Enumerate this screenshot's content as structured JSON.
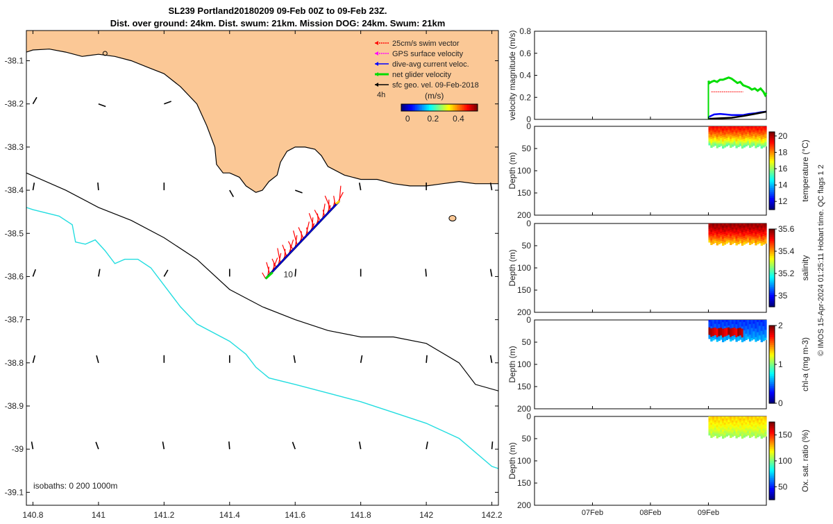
{
  "figure": {
    "title_line1": "SL239 Portland20180209 09-Feb 00Z to 09-Feb 23Z.",
    "title_line2": "Dist. over ground: 24km. Dist. swum: 21km. Mission DOG: 24km. Swum: 21km",
    "copyright": "© IMOS 15-Apr-2024 01:25:11 Hobart time. QC flags 1  2"
  },
  "chart_data": [
    {
      "type": "map",
      "name": "glider-track-map",
      "xlim": [
        140.78,
        142.22
      ],
      "ylim": [
        -39.13,
        -38.03
      ],
      "xticks": [
        140.8,
        141,
        141.2,
        141.4,
        141.6,
        141.8,
        142,
        142.2
      ],
      "yticks": [
        -38.1,
        -38.2,
        -38.3,
        -38.4,
        -38.5,
        -38.6,
        -38.7,
        -38.8,
        -38.9,
        -39,
        -39.1
      ],
      "xtick_labels": [
        "140.8",
        "141",
        "141.2",
        "141.4",
        "141.6",
        "141.8",
        "142",
        "142.2"
      ],
      "ytick_labels": [
        "-38.1",
        "-38.2",
        "-38.3",
        "-38.4",
        "-38.5",
        "-38.6",
        "-38.7",
        "-38.8",
        "-38.9",
        "-39",
        "-39.1"
      ],
      "land_color": "#fbc896",
      "coast": [
        [
          140.78,
          -38.08
        ],
        [
          140.8,
          -38.075
        ],
        [
          140.85,
          -38.073
        ],
        [
          140.9,
          -38.08
        ],
        [
          140.95,
          -38.09
        ],
        [
          141.0,
          -38.085
        ],
        [
          141.05,
          -38.09
        ],
        [
          141.1,
          -38.1
        ],
        [
          141.15,
          -38.115
        ],
        [
          141.2,
          -38.13
        ],
        [
          141.25,
          -38.16
        ],
        [
          141.3,
          -38.2
        ],
        [
          141.33,
          -38.25
        ],
        [
          141.355,
          -38.3
        ],
        [
          141.36,
          -38.34
        ],
        [
          141.38,
          -38.36
        ],
        [
          141.4,
          -38.36
        ],
        [
          141.43,
          -38.37
        ],
        [
          141.45,
          -38.39
        ],
        [
          141.48,
          -38.405
        ],
        [
          141.5,
          -38.4
        ],
        [
          141.52,
          -38.38
        ],
        [
          141.545,
          -38.365
        ],
        [
          141.555,
          -38.335
        ],
        [
          141.575,
          -38.31
        ],
        [
          141.6,
          -38.3
        ],
        [
          141.63,
          -38.3
        ],
        [
          141.66,
          -38.305
        ],
        [
          141.68,
          -38.32
        ],
        [
          141.7,
          -38.345
        ],
        [
          141.75,
          -38.365
        ],
        [
          141.8,
          -38.375
        ],
        [
          141.85,
          -38.375
        ],
        [
          141.9,
          -38.385
        ],
        [
          141.95,
          -38.39
        ],
        [
          142.0,
          -38.39
        ],
        [
          142.05,
          -38.385
        ],
        [
          142.1,
          -38.38
        ],
        [
          142.15,
          -38.385
        ],
        [
          142.22,
          -38.385
        ]
      ],
      "isobath_200": [
        [
          140.78,
          -38.36
        ],
        [
          140.9,
          -38.4
        ],
        [
          141.0,
          -38.44
        ],
        [
          141.1,
          -38.47
        ],
        [
          141.2,
          -38.51
        ],
        [
          141.3,
          -38.56
        ],
        [
          141.4,
          -38.63
        ],
        [
          141.5,
          -38.67
        ],
        [
          141.6,
          -38.7
        ],
        [
          141.7,
          -38.725
        ],
        [
          141.8,
          -38.74
        ],
        [
          141.9,
          -38.74
        ],
        [
          142.0,
          -38.755
        ],
        [
          142.1,
          -38.8
        ],
        [
          142.15,
          -38.85
        ],
        [
          142.22,
          -38.865
        ]
      ],
      "isobath_1000": [
        [
          140.78,
          -38.44
        ],
        [
          140.8,
          -38.445
        ],
        [
          140.88,
          -38.46
        ],
        [
          140.92,
          -38.48
        ],
        [
          140.93,
          -38.52
        ],
        [
          140.96,
          -38.525
        ],
        [
          140.99,
          -38.515
        ],
        [
          141.02,
          -38.54
        ],
        [
          141.05,
          -38.57
        ],
        [
          141.08,
          -38.56
        ],
        [
          141.12,
          -38.56
        ],
        [
          141.16,
          -38.58
        ],
        [
          141.2,
          -38.62
        ],
        [
          141.25,
          -38.67
        ],
        [
          141.3,
          -38.71
        ],
        [
          141.4,
          -38.75
        ],
        [
          141.45,
          -38.78
        ],
        [
          141.48,
          -38.81
        ],
        [
          141.52,
          -38.835
        ],
        [
          141.6,
          -38.85
        ],
        [
          141.7,
          -38.87
        ],
        [
          141.8,
          -38.89
        ],
        [
          141.9,
          -38.915
        ],
        [
          142.0,
          -38.94
        ],
        [
          142.1,
          -38.975
        ],
        [
          142.2,
          -39.04
        ],
        [
          142.22,
          -39.045
        ]
      ],
      "glider_track": {
        "start": [
          141.51,
          -38.605
        ],
        "end": [
          141.735,
          -38.425
        ],
        "label": "10",
        "label_at": [
          141.535,
          -38.595
        ]
      },
      "geo_vector_grid": {
        "lons": [
          140.8,
          141.0,
          141.2,
          141.4,
          141.6,
          141.8,
          142.0,
          142.2
        ],
        "lats": [
          -38.2,
          -38.4,
          -38.6,
          -38.8,
          -39.0
        ]
      },
      "isobaths_label": "isobaths: 0   200  1000m",
      "legend": {
        "entries": [
          {
            "label": "25cm/s swim vector",
            "color": "#ff0000"
          },
          {
            "label": "GPS surface velocity",
            "color": "#ff00ff"
          },
          {
            "label": "dive-avg current veloc.",
            "color": "#0000ff"
          },
          {
            "label": "net glider velocity",
            "color": "#00dd00"
          },
          {
            "label": "sfc geo. vel. 09-Feb-2018",
            "color": "#000000"
          }
        ],
        "window_label": "4h",
        "colorbar_units": "(m/s)",
        "colorbar_ticks": [
          "0",
          "0.2",
          "0.4"
        ],
        "colorbar_range": [
          -0.05,
          0.55
        ]
      }
    },
    {
      "type": "line",
      "name": "velocity-magnitude",
      "ylabel": "velocity magnitude (m/s)",
      "ylim": [
        0,
        0.8
      ],
      "yticks": [
        0,
        0.2,
        0.4,
        0.6,
        0.8
      ],
      "ytick_labels": [
        "0",
        "0.2",
        "0.4",
        "0.6",
        "0.8"
      ],
      "xlim_days": [
        6.0,
        10.0
      ],
      "series": [
        {
          "name": "net glider velocity",
          "color": "#00dd00",
          "x": [
            9.0,
            9.02,
            9.05,
            9.1,
            9.15,
            9.2,
            9.25,
            9.3,
            9.35,
            9.4,
            9.45,
            9.5,
            9.55,
            9.6,
            9.65,
            9.7,
            9.75,
            9.8,
            9.85,
            9.9,
            9.95,
            9.98,
            10.0
          ],
          "values": [
            0.35,
            0.33,
            0.34,
            0.35,
            0.34,
            0.36,
            0.36,
            0.37,
            0.38,
            0.37,
            0.35,
            0.33,
            0.34,
            0.31,
            0.3,
            0.29,
            0.27,
            0.28,
            0.26,
            0.28,
            0.25,
            0.22,
            0.24
          ]
        },
        {
          "name": "25cm/s swim vector",
          "color": "#ff0000",
          "x": [
            9.05,
            9.6
          ],
          "values": [
            0.25,
            0.25
          ]
        },
        {
          "name": "dive-avg current veloc.",
          "color": "#0000ff",
          "x": [
            9.0,
            9.1,
            9.2,
            9.3,
            9.4,
            9.5,
            9.6,
            9.7,
            9.8,
            9.9,
            10.0
          ],
          "values": [
            0.02,
            0.045,
            0.05,
            0.045,
            0.04,
            0.04,
            0.04,
            0.05,
            0.055,
            0.065,
            0.07
          ]
        },
        {
          "name": "sfc geo. vel.",
          "color": "#000000",
          "x": [
            9.0,
            9.2,
            9.4,
            9.6,
            9.8,
            10.0
          ],
          "values": [
            0.005,
            0.01,
            0.015,
            0.03,
            0.05,
            0.07
          ]
        }
      ]
    },
    {
      "type": "heatmap",
      "name": "temperature-section",
      "ylabel": "Depth (m)",
      "ylim": [
        200,
        0
      ],
      "yticks": [
        0,
        50,
        100,
        150,
        200
      ],
      "ytick_labels": [
        "0",
        "50",
        "100",
        "150",
        "200"
      ],
      "xlim_days": [
        6.0,
        10.0
      ],
      "time_range_days": [
        9.0,
        10.0
      ],
      "max_depth": [
        42,
        50
      ],
      "cbar_label": "temperature (°C)",
      "cbar_range": [
        11,
        20.5
      ],
      "cbar_ticks": [
        12,
        14,
        16,
        18,
        20
      ],
      "cbar_tick_labels": [
        "12",
        "14",
        "16",
        "18",
        "20"
      ],
      "surface_value": 19.2,
      "bottom_value": 15.6,
      "colormap": "jet"
    },
    {
      "type": "heatmap",
      "name": "salinity-section",
      "ylabel": "Depth (m)",
      "ylim": [
        200,
        0
      ],
      "yticks": [
        0,
        50,
        100,
        150,
        200
      ],
      "ytick_labels": [
        "0",
        "50",
        "100",
        "150",
        "200"
      ],
      "xlim_days": [
        6.0,
        10.0
      ],
      "time_range_days": [
        9.0,
        10.0
      ],
      "max_depth": [
        42,
        50
      ],
      "cbar_label": "salinity",
      "cbar_range": [
        34.9,
        35.6
      ],
      "cbar_ticks": [
        35,
        35.2,
        35.4,
        35.6
      ],
      "cbar_tick_labels": [
        "35",
        "35.2",
        "35.4",
        "35.6"
      ],
      "surface_value": 35.58,
      "bottom_value": 35.38,
      "colormap": "jet"
    },
    {
      "type": "heatmap",
      "name": "chla-section",
      "ylabel": "Depth (m)",
      "ylim": [
        200,
        0
      ],
      "yticks": [
        0,
        50,
        100,
        150,
        200
      ],
      "ytick_labels": [
        "0",
        "50",
        "100",
        "150",
        "200"
      ],
      "xlim_days": [
        6.0,
        10.0
      ],
      "time_range_days": [
        9.0,
        10.0
      ],
      "max_depth": [
        42,
        50
      ],
      "cbar_label": "chl-a (mg m-3)",
      "cbar_range": [
        0,
        2
      ],
      "cbar_ticks": [
        0,
        1,
        2
      ],
      "cbar_tick_labels": [
        "0",
        "1",
        "2"
      ],
      "surface_value": 0.35,
      "bottom_value": 0.6,
      "patch_value": 1.95,
      "colormap": "jet"
    },
    {
      "type": "heatmap",
      "name": "oxygen-section",
      "ylabel": "Depth (m)",
      "ylim": [
        200,
        0
      ],
      "yticks": [
        0,
        50,
        100,
        150,
        200
      ],
      "ytick_labels": [
        "0",
        "50",
        "100",
        "150",
        "200"
      ],
      "xlim_days": [
        6.0,
        10.0
      ],
      "time_range_days": [
        9.0,
        10.0
      ],
      "max_depth": [
        42,
        50
      ],
      "cbar_label": "Ox. sat. ratio (%)",
      "cbar_range": [
        25,
        175
      ],
      "cbar_ticks": [
        50,
        100,
        150
      ],
      "cbar_tick_labels": [
        "50",
        "100",
        "150"
      ],
      "surface_value": 125,
      "bottom_value": 105,
      "colormap": "jet"
    },
    {
      "type": "axis",
      "name": "time-axis",
      "ticks_days": [
        7,
        8,
        9
      ],
      "tick_labels": [
        "07Feb",
        "08Feb",
        "09Feb"
      ]
    }
  ]
}
